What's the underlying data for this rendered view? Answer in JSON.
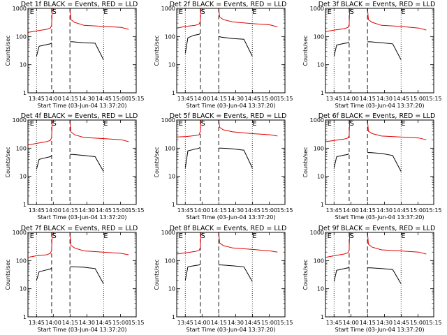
{
  "common": {
    "xlabel": "Start Time (03-Jun-04 13:37:20)",
    "ylabel": "Counts/sec",
    "x_ticks": [
      "13:45",
      "14:00",
      "14:15",
      "14:30",
      "14:45",
      "15:00",
      "15:15"
    ],
    "y_ticks": [
      "1",
      "10",
      "100",
      "1000"
    ],
    "markers": [
      "E",
      "S",
      "E"
    ],
    "colors": {
      "events": "#000000",
      "lld": "#e00000"
    }
  },
  "chart_data": [
    {
      "type": "line",
      "title": "Det 1f BLACK = Events, RED = LLD",
      "xlim": [
        0,
        5800
      ],
      "ylim": [
        1,
        1000
      ],
      "y_scale": "log",
      "grid": false,
      "vlines_dotted": [
        459,
        4050
      ],
      "vlines_dashed": [
        1270,
        2250
      ],
      "markers_x": [
        100,
        1290,
        4050
      ],
      "series": [
        {
          "segments": [
            {
              "x": [
                459,
                600,
                900,
                1200,
                1270
              ],
              "y": [
                20,
                45,
                50,
                55,
                60
              ]
            },
            {
              "x": [
                2250,
                2400,
                3000,
                3600,
                4050
              ],
              "y": [
                65,
                65,
                60,
                58,
                15
              ]
            }
          ]
        },
        {
          "segments": [
            {
              "x": [
                0,
                500,
                1000,
                1200,
                1270,
                1300
              ],
              "y": [
                140,
                160,
                180,
                200,
                250,
                1000
              ]
            },
            {
              "x": [
                2250,
                2300,
                2500,
                3000,
                4000,
                5000,
                5400
              ],
              "y": [
                1000,
                400,
                320,
                250,
                230,
                210,
                180
              ]
            }
          ]
        }
      ]
    },
    {
      "type": "line",
      "title": "Det 2f BLACK = Events, RED = LLD",
      "xlim": [
        0,
        5800
      ],
      "ylim": [
        1,
        1000
      ],
      "y_scale": "log",
      "grid": false,
      "vlines_dotted": [
        459,
        4050
      ],
      "vlines_dashed": [
        1270,
        2250
      ],
      "markers_x": [
        100,
        1290,
        4050
      ],
      "series": [
        {
          "segments": [
            {
              "x": [
                459,
                600,
                900,
                1200,
                1270
              ],
              "y": [
                25,
                90,
                110,
                120,
                130
              ]
            },
            {
              "x": [
                2250,
                2400,
                3000,
                3600,
                4050
              ],
              "y": [
                100,
                95,
                85,
                80,
                20
              ]
            }
          ]
        },
        {
          "segments": [
            {
              "x": [
                0,
                500,
                1000,
                1200,
                1270,
                1300
              ],
              "y": [
                200,
                230,
                250,
                280,
                350,
                1000
              ]
            },
            {
              "x": [
                2250,
                2300,
                2500,
                3000,
                4000,
                5000,
                5400
              ],
              "y": [
                1000,
                500,
                400,
                330,
                290,
                260,
                220
              ]
            }
          ]
        }
      ]
    },
    {
      "type": "line",
      "title": "Det 3f BLACK = Events, RED = LLD",
      "xlim": [
        0,
        5800
      ],
      "ylim": [
        1,
        1000
      ],
      "y_scale": "log",
      "grid": false,
      "vlines_dotted": [
        459,
        4050
      ],
      "vlines_dashed": [
        1270,
        2250
      ],
      "markers_x": [
        100,
        1290,
        4050
      ],
      "series": [
        {
          "segments": [
            {
              "x": [
                459,
                600,
                900,
                1200,
                1270
              ],
              "y": [
                20,
                50,
                55,
                60,
                65
              ]
            },
            {
              "x": [
                2250,
                2400,
                3000,
                3600,
                4050
              ],
              "y": [
                65,
                65,
                60,
                55,
                15
              ]
            }
          ]
        },
        {
          "segments": [
            {
              "x": [
                0,
                500,
                1000,
                1200,
                1270,
                1300
              ],
              "y": [
                150,
                170,
                190,
                210,
                260,
                1000
              ]
            },
            {
              "x": [
                2250,
                2300,
                2500,
                3000,
                4000,
                5000,
                5400
              ],
              "y": [
                1000,
                400,
                320,
                250,
                230,
                200,
                170
              ]
            }
          ]
        }
      ]
    },
    {
      "type": "line",
      "title": "Det 4f BLACK = Events, RED = LLD",
      "xlim": [
        0,
        5800
      ],
      "ylim": [
        1,
        1000
      ],
      "y_scale": "log",
      "grid": false,
      "vlines_dotted": [
        459,
        4050
      ],
      "vlines_dashed": [
        1270,
        2250
      ],
      "markers_x": [
        100,
        1290,
        4050
      ],
      "series": [
        {
          "segments": [
            {
              "x": [
                459,
                600,
                900,
                1200,
                1270
              ],
              "y": [
                18,
                40,
                45,
                50,
                55
              ]
            },
            {
              "x": [
                2250,
                2400,
                3000,
                3600,
                4050
              ],
              "y": [
                60,
                60,
                55,
                50,
                15
              ]
            }
          ]
        },
        {
          "segments": [
            {
              "x": [
                0,
                500,
                1000,
                1200,
                1270,
                1300
              ],
              "y": [
                130,
                150,
                170,
                190,
                240,
                1000
              ]
            },
            {
              "x": [
                2250,
                2300,
                2500,
                3000,
                4000,
                5000,
                5400
              ],
              "y": [
                1000,
                380,
                300,
                240,
                220,
                200,
                170
              ]
            }
          ]
        }
      ]
    },
    {
      "type": "line",
      "title": "Det 5f BLACK = Events, RED = LLD",
      "xlim": [
        0,
        5800
      ],
      "ylim": [
        1,
        1000
      ],
      "y_scale": "log",
      "grid": false,
      "vlines_dotted": [
        459,
        4050
      ],
      "vlines_dashed": [
        1270,
        2250
      ],
      "markers_x": [
        100,
        1290,
        4050
      ],
      "series": [
        {
          "segments": [
            {
              "x": [
                459,
                600,
                900,
                1200,
                1270
              ],
              "y": [
                20,
                80,
                90,
                100,
                110
              ]
            },
            {
              "x": [
                2250,
                2400,
                3000,
                3600,
                4050
              ],
              "y": [
                100,
                100,
                95,
                85,
                20
              ]
            }
          ]
        },
        {
          "segments": [
            {
              "x": [
                0,
                500,
                1000,
                1200,
                1270,
                1300
              ],
              "y": [
                250,
                260,
                280,
                300,
                400,
                1000
              ]
            },
            {
              "x": [
                2250,
                2300,
                2500,
                3000,
                4000,
                5000,
                5400
              ],
              "y": [
                1000,
                550,
                450,
                380,
                330,
                300,
                270
              ]
            }
          ]
        }
      ]
    },
    {
      "type": "line",
      "title": "Det 6f BLACK = Events, RED = LLD",
      "xlim": [
        0,
        5800
      ],
      "ylim": [
        1,
        1000
      ],
      "y_scale": "log",
      "grid": false,
      "vlines_dotted": [
        459,
        4050
      ],
      "vlines_dashed": [
        1270,
        2250
      ],
      "markers_x": [
        100,
        1290,
        4050
      ],
      "series": [
        {
          "segments": [
            {
              "x": [
                459,
                600,
                900,
                1200,
                1270
              ],
              "y": [
                20,
                50,
                55,
                60,
                65
              ]
            },
            {
              "x": [
                2250,
                2400,
                3000,
                3600,
                4050
              ],
              "y": [
                70,
                70,
                65,
                55,
                15
              ]
            }
          ]
        },
        {
          "segments": [
            {
              "x": [
                0,
                500,
                1000,
                1200,
                1270,
                1300
              ],
              "y": [
                170,
                190,
                210,
                230,
                280,
                1000
              ]
            },
            {
              "x": [
                2250,
                2300,
                2500,
                3000,
                4000,
                5000,
                5400
              ],
              "y": [
                1000,
                400,
                330,
                270,
                250,
                230,
                200
              ]
            }
          ]
        }
      ]
    },
    {
      "type": "line",
      "title": "Det 7f BLACK = Events, RED = LLD",
      "xlim": [
        0,
        5800
      ],
      "ylim": [
        1,
        1000
      ],
      "y_scale": "log",
      "grid": false,
      "vlines_dotted": [
        459,
        4050
      ],
      "vlines_dashed": [
        1270,
        2250
      ],
      "markers_x": [
        100,
        1290,
        4050
      ],
      "series": [
        {
          "segments": [
            {
              "x": [
                459,
                600,
                900,
                1200,
                1270
              ],
              "y": [
                20,
                40,
                45,
                50,
                55
              ]
            },
            {
              "x": [
                2250,
                2400,
                3000,
                3600,
                4050
              ],
              "y": [
                60,
                60,
                58,
                52,
                15
              ]
            }
          ]
        },
        {
          "segments": [
            {
              "x": [
                0,
                500,
                1000,
                1200,
                1270,
                1300
              ],
              "y": [
                130,
                150,
                160,
                180,
                230,
                1000
              ]
            },
            {
              "x": [
                2250,
                2300,
                2500,
                3000,
                4000,
                5000,
                5400
              ],
              "y": [
                1000,
                350,
                280,
                220,
                200,
                180,
                160
              ]
            }
          ]
        }
      ]
    },
    {
      "type": "line",
      "title": "Det 8f BLACK = Events, RED = LLD",
      "xlim": [
        0,
        5800
      ],
      "ylim": [
        1,
        1000
      ],
      "y_scale": "log",
      "grid": false,
      "vlines_dotted": [
        459,
        4050
      ],
      "vlines_dashed": [
        1270,
        2250
      ],
      "markers_x": [
        100,
        1290,
        4050
      ],
      "series": [
        {
          "segments": [
            {
              "x": [
                459,
                600,
                900,
                1200,
                1270
              ],
              "y": [
                20,
                60,
                65,
                70,
                75
              ]
            },
            {
              "x": [
                2250,
                2400,
                3000,
                3600,
                4050
              ],
              "y": [
                70,
                70,
                65,
                60,
                18
              ]
            }
          ]
        },
        {
          "segments": [
            {
              "x": [
                0,
                500,
                1000,
                1200,
                1270,
                1300
              ],
              "y": [
                170,
                190,
                210,
                230,
                290,
                1000
              ]
            },
            {
              "x": [
                2250,
                2300,
                2500,
                3000,
                4000,
                5000,
                5400
              ],
              "y": [
                1000,
                420,
                340,
                280,
                250,
                220,
                200
              ]
            }
          ]
        }
      ]
    },
    {
      "type": "line",
      "title": "Det 9f BLACK = Events, RED = LLD",
      "xlim": [
        0,
        5800
      ],
      "ylim": [
        1,
        1000
      ],
      "y_scale": "log",
      "grid": false,
      "vlines_dotted": [
        459,
        4050
      ],
      "vlines_dashed": [
        1270,
        2250
      ],
      "markers_x": [
        100,
        1290,
        4050
      ],
      "series": [
        {
          "segments": [
            {
              "x": [
                459,
                600,
                900,
                1200,
                1270
              ],
              "y": [
                18,
                45,
                50,
                55,
                60
              ]
            },
            {
              "x": [
                2250,
                2400,
                3000,
                3600,
                4050
              ],
              "y": [
                55,
                55,
                52,
                48,
                15
              ]
            }
          ]
        },
        {
          "segments": [
            {
              "x": [
                0,
                500,
                1000,
                1200,
                1270,
                1300
              ],
              "y": [
                130,
                150,
                170,
                190,
                240,
                1000
              ]
            },
            {
              "x": [
                2250,
                2300,
                2500,
                3000,
                4000,
                5000,
                5400
              ],
              "y": [
                1000,
                380,
                300,
                240,
                220,
                200,
                170
              ]
            }
          ]
        }
      ]
    }
  ]
}
